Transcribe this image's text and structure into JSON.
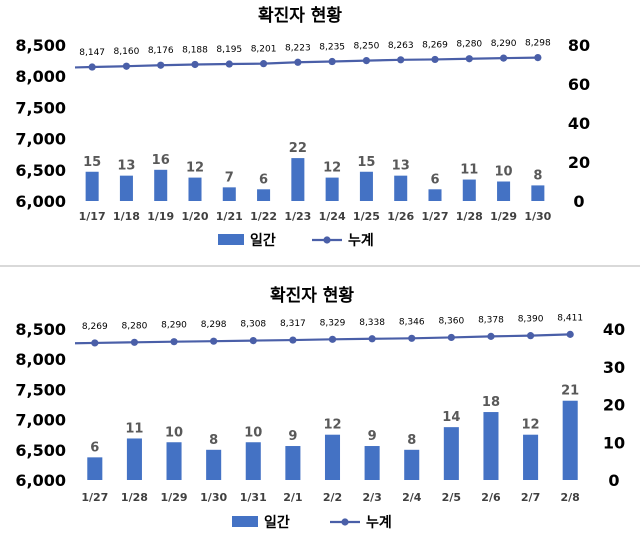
{
  "chart_data": [
    {
      "type": "bar+line",
      "title": "확진자 현황",
      "categories": [
        "1/17",
        "1/18",
        "1/19",
        "1/20",
        "1/21",
        "1/22",
        "1/23",
        "1/24",
        "1/25",
        "1/26",
        "1/27",
        "1/28",
        "1/29",
        "1/30"
      ],
      "series": [
        {
          "name": "일간",
          "type": "bar",
          "axis": "right",
          "color": "#4472c4",
          "values": [
            15,
            13,
            16,
            12,
            7,
            6,
            22,
            12,
            15,
            13,
            6,
            11,
            10,
            8
          ]
        },
        {
          "name": "누계",
          "type": "line",
          "axis": "left",
          "color": "#4a5fa8",
          "values": [
            8147,
            8160,
            8176,
            8188,
            8195,
            8201,
            8223,
            8235,
            8250,
            8263,
            8269,
            8280,
            8290,
            8298
          ],
          "labels": [
            "8,147",
            "8,160",
            "8,176",
            "8,188",
            "8,195",
            "8,201",
            "8,223",
            "8,235",
            "8,250",
            "8,263",
            "8,269",
            "8,280",
            "8,290",
            "8,298"
          ]
        }
      ],
      "y_left": {
        "range": [
          6000,
          8500
        ],
        "ticks": [
          "6,000",
          "6,500",
          "7,000",
          "7,500",
          "8,000",
          "8,500"
        ]
      },
      "y_right": {
        "range": [
          0,
          80
        ],
        "ticks": [
          "0",
          "20",
          "40",
          "60",
          "80"
        ]
      },
      "legend": {
        "position": "bottom",
        "items": [
          "일간",
          "누계"
        ]
      },
      "grid": false
    },
    {
      "type": "bar+line",
      "title": "확진자 현황",
      "categories": [
        "1/27",
        "1/28",
        "1/29",
        "1/30",
        "1/31",
        "2/1",
        "2/2",
        "2/3",
        "2/4",
        "2/5",
        "2/6",
        "2/7",
        "2/8"
      ],
      "series": [
        {
          "name": "일간",
          "type": "bar",
          "axis": "right",
          "color": "#4472c4",
          "values": [
            6,
            11,
            10,
            8,
            10,
            9,
            12,
            9,
            8,
            14,
            18,
            12,
            21
          ]
        },
        {
          "name": "누계",
          "type": "line",
          "axis": "left",
          "color": "#4a5fa8",
          "values": [
            8269,
            8280,
            8290,
            8298,
            8308,
            8317,
            8329,
            8338,
            8346,
            8360,
            8378,
            8390,
            8411
          ],
          "labels": [
            "8,269",
            "8,280",
            "8,290",
            "8,298",
            "8,308",
            "8,317",
            "8,329",
            "8,338",
            "8,346",
            "8,360",
            "8,378",
            "8,390",
            "8,411"
          ]
        }
      ],
      "y_left": {
        "range": [
          6000,
          8500
        ],
        "ticks": [
          "6,000",
          "6,500",
          "7,000",
          "7,500",
          "8,000",
          "8,500"
        ]
      },
      "y_right": {
        "range": [
          0,
          40
        ],
        "ticks": [
          "0",
          "10",
          "20",
          "30",
          "40"
        ]
      },
      "legend": {
        "position": "bottom",
        "items": [
          "일간",
          "누계"
        ]
      },
      "grid": false
    }
  ]
}
